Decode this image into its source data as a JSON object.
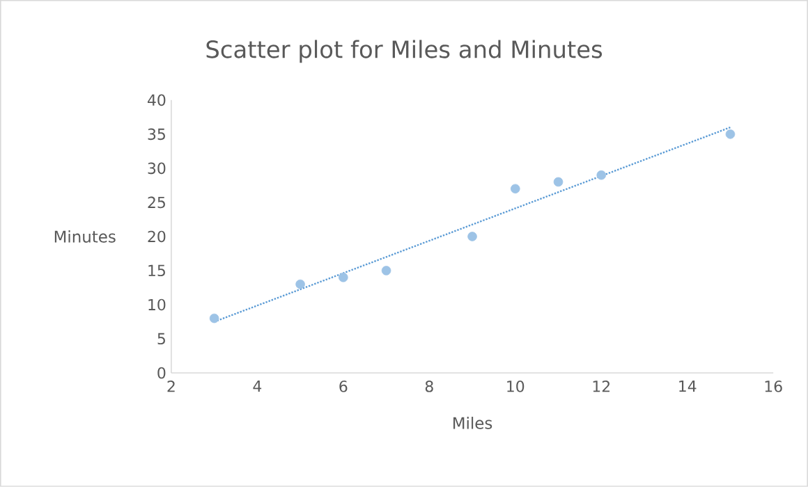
{
  "chart_data": {
    "type": "scatter",
    "title": "Scatter plot for Miles and Minutes",
    "xlabel": "Miles",
    "ylabel": "Minutes",
    "xlim": [
      2,
      16
    ],
    "xticks": [
      2,
      4,
      6,
      8,
      10,
      12,
      14,
      16
    ],
    "ylim": [
      0,
      40
    ],
    "yticks": [
      0,
      5,
      10,
      15,
      20,
      25,
      30,
      35,
      40
    ],
    "marker": "circle",
    "grid": false,
    "series": [
      {
        "color": "#9dc3e6",
        "x": [
          3,
          5,
          6,
          7,
          9,
          10,
          11,
          12,
          15
        ],
        "values": [
          8,
          13,
          14,
          15,
          20,
          27,
          28,
          29,
          35
        ]
      },
      {
        "type": "line",
        "color": "#5b9bd5",
        "line_style": "dotted",
        "marker": "none",
        "x": [
          3,
          15
        ],
        "values": [
          7.5,
          36
        ]
      }
    ]
  }
}
